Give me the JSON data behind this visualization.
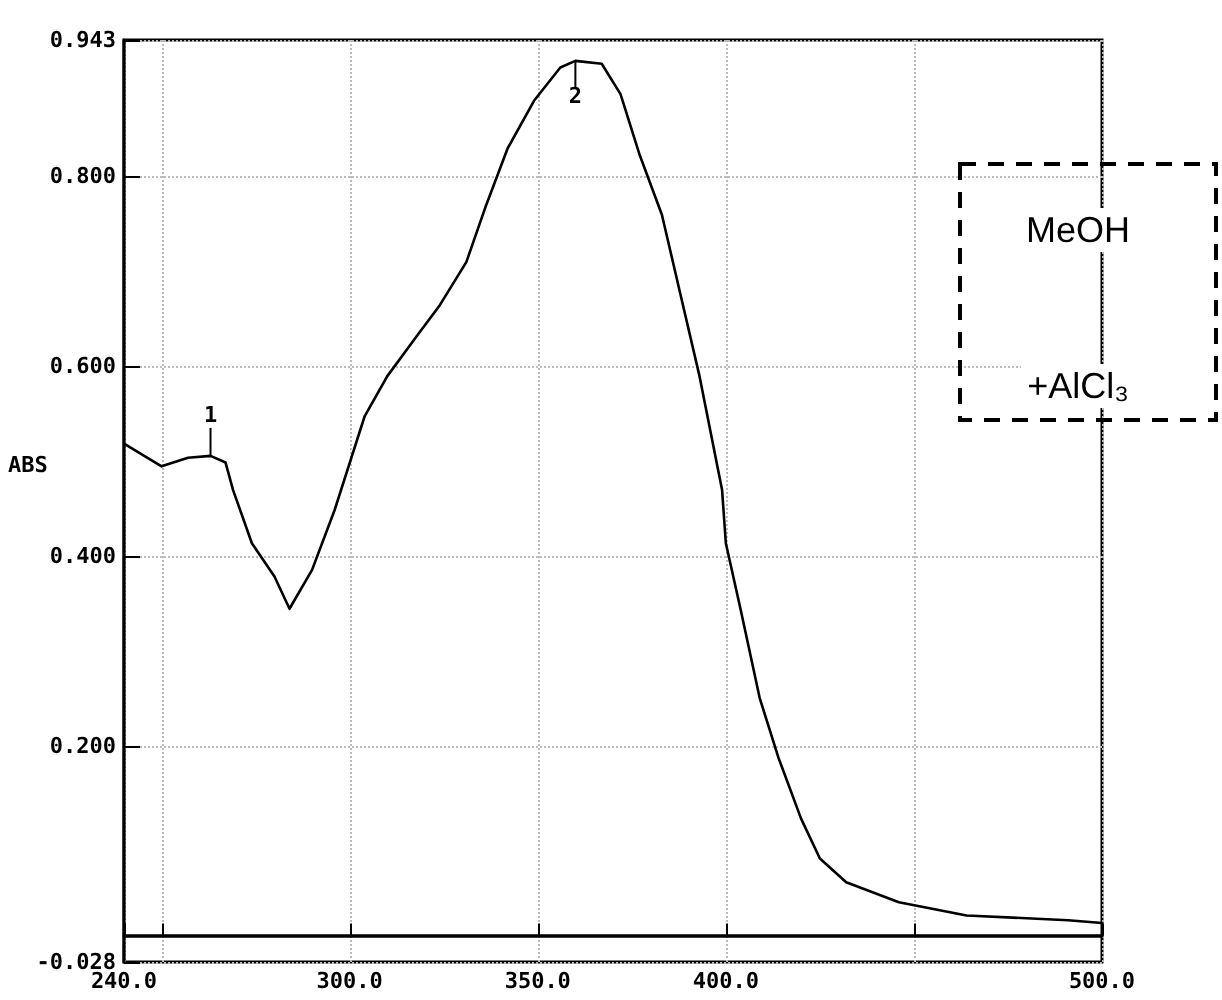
{
  "chart_data": {
    "type": "line",
    "ylabel": "ABS",
    "xlim": [
      240,
      500
    ],
    "xticks": [
      {
        "value": 240,
        "label": "240.0"
      },
      {
        "value": 250,
        "label": null
      },
      {
        "value": 300,
        "label": "300.0"
      },
      {
        "value": 350,
        "label": "350.0"
      },
      {
        "value": 400,
        "label": "400.0"
      },
      {
        "value": 450,
        "label": null
      },
      {
        "value": 500,
        "label": "500.0"
      }
    ],
    "ylim": [
      -0.028,
      0.943
    ],
    "yticks": [
      {
        "value": -0.028,
        "label": "-0.028"
      },
      {
        "value": 0.2,
        "label": "0.200"
      },
      {
        "value": 0.4,
        "label": "0.400"
      },
      {
        "value": 0.6,
        "label": "0.600"
      },
      {
        "value": 0.8,
        "label": "0.800"
      },
      {
        "value": 0.943,
        "label": "0.943"
      }
    ],
    "grid": true,
    "marker": "none",
    "line_style": "solid",
    "series": [
      {
        "color": "#000000",
        "x": [
          240,
          250,
          257,
          263,
          267,
          269,
          274,
          280,
          284,
          290,
          296,
          304,
          310,
          318,
          324,
          331,
          336,
          342,
          349,
          356,
          360,
          367,
          372,
          377,
          383,
          388,
          393,
          399,
          400,
          404,
          409,
          414,
          420,
          425,
          432,
          446,
          464,
          491,
          500
        ],
        "values": [
          0.518,
          0.494,
          0.503,
          0.505,
          0.498,
          0.469,
          0.413,
          0.378,
          0.344,
          0.385,
          0.448,
          0.547,
          0.589,
          0.632,
          0.664,
          0.709,
          0.766,
          0.829,
          0.879,
          0.914,
          0.921,
          0.918,
          0.886,
          0.823,
          0.759,
          0.674,
          0.589,
          0.469,
          0.413,
          0.342,
          0.25,
          0.187,
          0.123,
          0.081,
          0.056,
          0.035,
          0.021,
          0.016,
          0.013
        ]
      }
    ],
    "ref_lines": [
      {
        "axis": "y",
        "value": 0,
        "color": "#000000",
        "line_style": "solid"
      }
    ],
    "annotations": [
      {
        "text": "1",
        "x": 263,
        "y": 0.505
      },
      {
        "text": "2",
        "x": 360,
        "y": 0.921
      },
      "MeOH",
      "+AlCl₃"
    ]
  }
}
